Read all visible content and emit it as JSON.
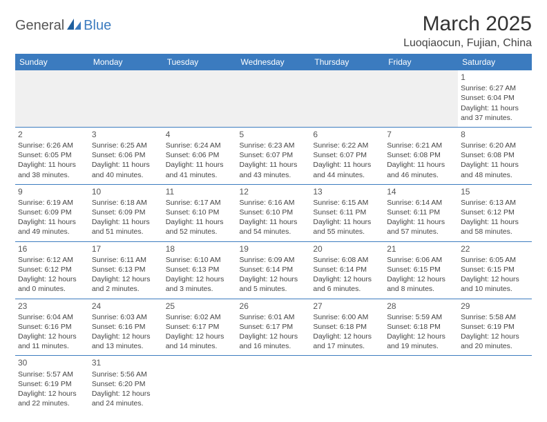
{
  "logo": {
    "text1": "General",
    "text2": "Blue"
  },
  "title": "March 2025",
  "location": "Luoqiaocun, Fujian, China",
  "colors": {
    "header_bg": "#3b7bbf",
    "header_fg": "#ffffff",
    "border": "#3b7bbf",
    "blank_bg": "#f0f0f0"
  },
  "weekdays": [
    "Sunday",
    "Monday",
    "Tuesday",
    "Wednesday",
    "Thursday",
    "Friday",
    "Saturday"
  ],
  "weeks": [
    [
      null,
      null,
      null,
      null,
      null,
      null,
      {
        "d": "1",
        "sr": "Sunrise: 6:27 AM",
        "ss": "Sunset: 6:04 PM",
        "dl": "Daylight: 11 hours and 37 minutes."
      }
    ],
    [
      {
        "d": "2",
        "sr": "Sunrise: 6:26 AM",
        "ss": "Sunset: 6:05 PM",
        "dl": "Daylight: 11 hours and 38 minutes."
      },
      {
        "d": "3",
        "sr": "Sunrise: 6:25 AM",
        "ss": "Sunset: 6:06 PM",
        "dl": "Daylight: 11 hours and 40 minutes."
      },
      {
        "d": "4",
        "sr": "Sunrise: 6:24 AM",
        "ss": "Sunset: 6:06 PM",
        "dl": "Daylight: 11 hours and 41 minutes."
      },
      {
        "d": "5",
        "sr": "Sunrise: 6:23 AM",
        "ss": "Sunset: 6:07 PM",
        "dl": "Daylight: 11 hours and 43 minutes."
      },
      {
        "d": "6",
        "sr": "Sunrise: 6:22 AM",
        "ss": "Sunset: 6:07 PM",
        "dl": "Daylight: 11 hours and 44 minutes."
      },
      {
        "d": "7",
        "sr": "Sunrise: 6:21 AM",
        "ss": "Sunset: 6:08 PM",
        "dl": "Daylight: 11 hours and 46 minutes."
      },
      {
        "d": "8",
        "sr": "Sunrise: 6:20 AM",
        "ss": "Sunset: 6:08 PM",
        "dl": "Daylight: 11 hours and 48 minutes."
      }
    ],
    [
      {
        "d": "9",
        "sr": "Sunrise: 6:19 AM",
        "ss": "Sunset: 6:09 PM",
        "dl": "Daylight: 11 hours and 49 minutes."
      },
      {
        "d": "10",
        "sr": "Sunrise: 6:18 AM",
        "ss": "Sunset: 6:09 PM",
        "dl": "Daylight: 11 hours and 51 minutes."
      },
      {
        "d": "11",
        "sr": "Sunrise: 6:17 AM",
        "ss": "Sunset: 6:10 PM",
        "dl": "Daylight: 11 hours and 52 minutes."
      },
      {
        "d": "12",
        "sr": "Sunrise: 6:16 AM",
        "ss": "Sunset: 6:10 PM",
        "dl": "Daylight: 11 hours and 54 minutes."
      },
      {
        "d": "13",
        "sr": "Sunrise: 6:15 AM",
        "ss": "Sunset: 6:11 PM",
        "dl": "Daylight: 11 hours and 55 minutes."
      },
      {
        "d": "14",
        "sr": "Sunrise: 6:14 AM",
        "ss": "Sunset: 6:11 PM",
        "dl": "Daylight: 11 hours and 57 minutes."
      },
      {
        "d": "15",
        "sr": "Sunrise: 6:13 AM",
        "ss": "Sunset: 6:12 PM",
        "dl": "Daylight: 11 hours and 58 minutes."
      }
    ],
    [
      {
        "d": "16",
        "sr": "Sunrise: 6:12 AM",
        "ss": "Sunset: 6:12 PM",
        "dl": "Daylight: 12 hours and 0 minutes."
      },
      {
        "d": "17",
        "sr": "Sunrise: 6:11 AM",
        "ss": "Sunset: 6:13 PM",
        "dl": "Daylight: 12 hours and 2 minutes."
      },
      {
        "d": "18",
        "sr": "Sunrise: 6:10 AM",
        "ss": "Sunset: 6:13 PM",
        "dl": "Daylight: 12 hours and 3 minutes."
      },
      {
        "d": "19",
        "sr": "Sunrise: 6:09 AM",
        "ss": "Sunset: 6:14 PM",
        "dl": "Daylight: 12 hours and 5 minutes."
      },
      {
        "d": "20",
        "sr": "Sunrise: 6:08 AM",
        "ss": "Sunset: 6:14 PM",
        "dl": "Daylight: 12 hours and 6 minutes."
      },
      {
        "d": "21",
        "sr": "Sunrise: 6:06 AM",
        "ss": "Sunset: 6:15 PM",
        "dl": "Daylight: 12 hours and 8 minutes."
      },
      {
        "d": "22",
        "sr": "Sunrise: 6:05 AM",
        "ss": "Sunset: 6:15 PM",
        "dl": "Daylight: 12 hours and 10 minutes."
      }
    ],
    [
      {
        "d": "23",
        "sr": "Sunrise: 6:04 AM",
        "ss": "Sunset: 6:16 PM",
        "dl": "Daylight: 12 hours and 11 minutes."
      },
      {
        "d": "24",
        "sr": "Sunrise: 6:03 AM",
        "ss": "Sunset: 6:16 PM",
        "dl": "Daylight: 12 hours and 13 minutes."
      },
      {
        "d": "25",
        "sr": "Sunrise: 6:02 AM",
        "ss": "Sunset: 6:17 PM",
        "dl": "Daylight: 12 hours and 14 minutes."
      },
      {
        "d": "26",
        "sr": "Sunrise: 6:01 AM",
        "ss": "Sunset: 6:17 PM",
        "dl": "Daylight: 12 hours and 16 minutes."
      },
      {
        "d": "27",
        "sr": "Sunrise: 6:00 AM",
        "ss": "Sunset: 6:18 PM",
        "dl": "Daylight: 12 hours and 17 minutes."
      },
      {
        "d": "28",
        "sr": "Sunrise: 5:59 AM",
        "ss": "Sunset: 6:18 PM",
        "dl": "Daylight: 12 hours and 19 minutes."
      },
      {
        "d": "29",
        "sr": "Sunrise: 5:58 AM",
        "ss": "Sunset: 6:19 PM",
        "dl": "Daylight: 12 hours and 20 minutes."
      }
    ],
    [
      {
        "d": "30",
        "sr": "Sunrise: 5:57 AM",
        "ss": "Sunset: 6:19 PM",
        "dl": "Daylight: 12 hours and 22 minutes."
      },
      {
        "d": "31",
        "sr": "Sunrise: 5:56 AM",
        "ss": "Sunset: 6:20 PM",
        "dl": "Daylight: 12 hours and 24 minutes."
      },
      null,
      null,
      null,
      null,
      null
    ]
  ]
}
